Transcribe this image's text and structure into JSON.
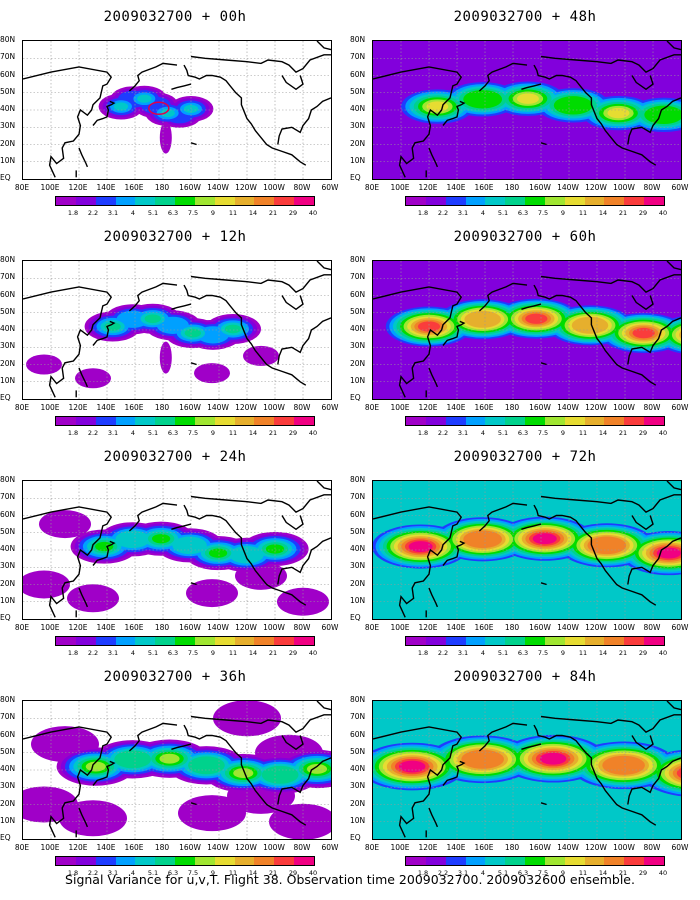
{
  "caption": "Signal Variance for u,v,T. Flight 38. Observation time 2009032700. 2009032600 ensemble.",
  "panels": [
    {
      "title": "2009032700 + 00h",
      "intensity": 0
    },
    {
      "title": "2009032700 + 48h",
      "intensity": 4
    },
    {
      "title": "2009032700 + 12h",
      "intensity": 1
    },
    {
      "title": "2009032700 + 60h",
      "intensity": 5
    },
    {
      "title": "2009032700 + 24h",
      "intensity": 2
    },
    {
      "title": "2009032700 + 72h",
      "intensity": 6
    },
    {
      "title": "2009032700 + 36h",
      "intensity": 3
    },
    {
      "title": "2009032700 + 84h",
      "intensity": 7
    }
  ],
  "lon_labels": [
    "80E",
    "100E",
    "120E",
    "140E",
    "160E",
    "180",
    "160W",
    "140W",
    "120W",
    "100W",
    "80W",
    "60W"
  ],
  "lat_labels": [
    "80N",
    "70N",
    "60N",
    "50N",
    "40N",
    "30N",
    "20N",
    "10N",
    "EQ"
  ],
  "colorbar": {
    "labels": [
      "1.8",
      "2.2",
      "3.1",
      "4",
      "5.1",
      "6.3",
      "7.5",
      "9",
      "11",
      "14",
      "21",
      "29",
      "40"
    ],
    "colors": [
      "#a000c8",
      "#8200dc",
      "#1e3cff",
      "#00a0ff",
      "#00c8c8",
      "#00d28c",
      "#00dc00",
      "#a0e632",
      "#e6dc32",
      "#e6af2d",
      "#f08228",
      "#fa3c3c",
      "#f00082"
    ]
  }
}
